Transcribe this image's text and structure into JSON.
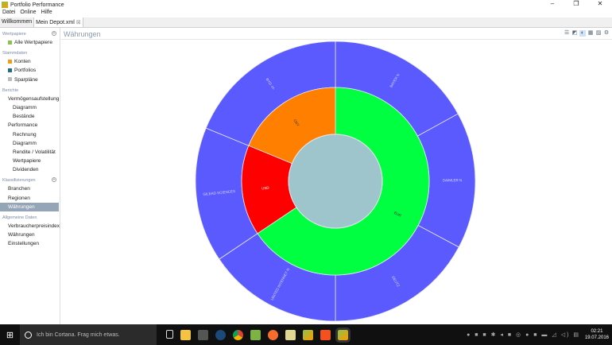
{
  "window": {
    "title": "Portfolio Performance",
    "controls": [
      "–",
      "❐",
      "✕"
    ]
  },
  "menu": [
    "Datei",
    "Online",
    "Hilfe"
  ],
  "tabs": [
    {
      "label": "Willkommen"
    },
    {
      "label": "Mein Depot.xml",
      "close": "⊠"
    }
  ],
  "sidebar": {
    "wertpapiere": {
      "title": "Wertpapiere",
      "items": [
        "Alle Wertpapiere"
      ]
    },
    "stammdaten": {
      "title": "Stammdaten",
      "items": [
        "Konten",
        "Portfolios",
        "Sparpläne"
      ]
    },
    "berichte": {
      "title": "Berichte",
      "items": [
        "Vermögensaufstellung",
        "Diagramm",
        "Bestände",
        "Performance",
        "Rechnung",
        "Diagramm",
        "Rendite / Volatilität",
        "Wertpapiere",
        "Dividenden"
      ]
    },
    "klassifizierungen": {
      "title": "Klassifizierungen",
      "items": [
        "Branchen",
        "Regionen",
        "Währungen"
      ],
      "selected": "Währungen"
    },
    "allgemein": {
      "title": "Allgemeine Daten",
      "items": [
        "Verbraucherpreisindex",
        "Währungen",
        "Einstellungen"
      ]
    }
  },
  "view": {
    "title": "Währungen",
    "tools": [
      "list-icon",
      "treemap-icon",
      "sunburst-icon",
      "grid-icon",
      "image-icon",
      "gear-icon"
    ]
  },
  "chart_data": {
    "type": "sunburst",
    "center_color": "#9ec4cc",
    "inner": [
      {
        "label": "EUR",
        "value": 65.6,
        "color": "#00ff40"
      },
      {
        "label": "USD",
        "value": 15.6,
        "color": "#ff0000"
      },
      {
        "label": "CNY",
        "value": 18.8,
        "color": "#ff8000"
      }
    ],
    "outer": [
      {
        "label": "BAYER N",
        "value": 17.0,
        "parent": "EUR"
      },
      {
        "label": "DAIMLER N",
        "value": 15.8,
        "parent": "EUR"
      },
      {
        "label": "DEUTZ",
        "value": 17.2,
        "parent": "EUR"
      },
      {
        "label": "UNITED INTERNET N",
        "value": 15.6,
        "parent": "EUR"
      },
      {
        "label": "GILEAD SCIENCES",
        "value": 15.6,
        "parent": "USD"
      },
      {
        "label": "BYD -H-",
        "value": 18.8,
        "parent": "CNY"
      }
    ],
    "outer_color": "#5a5aff"
  },
  "taskbar": {
    "search_placeholder": "Ich bin Cortana. Frag mich etwas.",
    "time": "02:21",
    "date": "19.07.2016"
  }
}
